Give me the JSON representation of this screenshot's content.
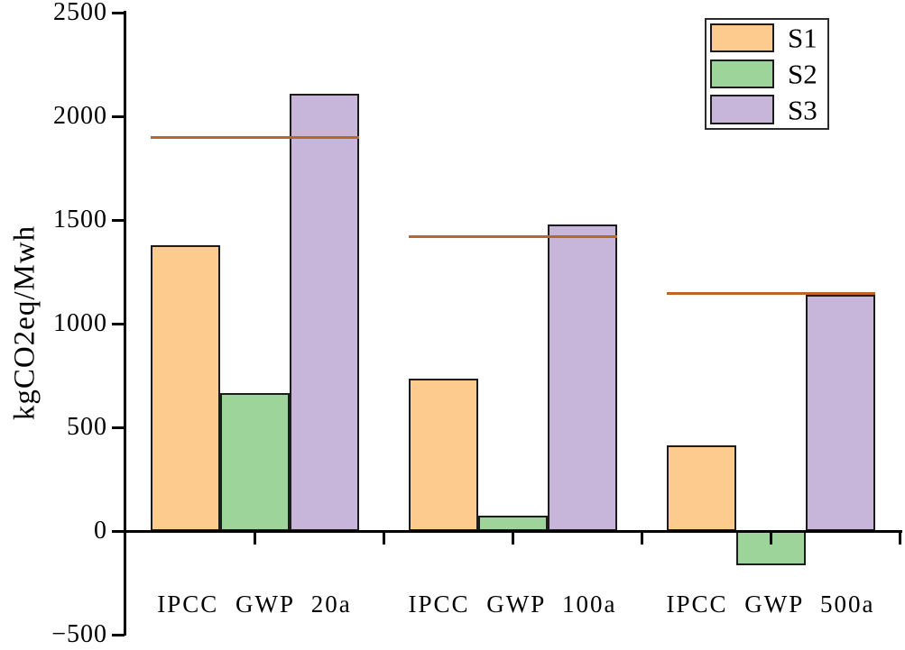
{
  "figure": {
    "background": "#ffffff",
    "axis_color": "#000000"
  },
  "y_axis": {
    "title": "kgCO2eq/Mwh",
    "ticks": [
      {
        "value": 2500,
        "label": "2500"
      },
      {
        "value": 2000,
        "label": "2000"
      },
      {
        "value": 1500,
        "label": "1500"
      },
      {
        "value": 1000,
        "label": "1000"
      },
      {
        "value": 500,
        "label": "500"
      },
      {
        "value": 0,
        "label": "0"
      },
      {
        "value": -500,
        "label": "−500"
      }
    ]
  },
  "legend": {
    "position": "top-right",
    "items": [
      {
        "label": "S1",
        "color": "#FDCB8E"
      },
      {
        "label": "S2",
        "color": "#9CD49A"
      },
      {
        "label": "S3",
        "color": "#C8B6DA"
      }
    ]
  },
  "chart_data": {
    "type": "bar",
    "title": "",
    "xlabel": "",
    "ylabel": "kgCO2eq/Mwh",
    "ylim": [
      -500,
      2500
    ],
    "grid": false,
    "categories": [
      "IPCC GWP 20a",
      "IPCC GWP 100a",
      "IPCC GWP 500a"
    ],
    "series": [
      {
        "name": "S1",
        "color": "#FDCB8E",
        "values": [
          1380,
          735,
          415
        ]
      },
      {
        "name": "S2",
        "color": "#9CD49A",
        "values": [
          665,
          75,
          -165
        ]
      },
      {
        "name": "S3",
        "color": "#C8B6DA",
        "values": [
          2110,
          1480,
          1140
        ],
        "pattern": "dots"
      }
    ],
    "reference_lines": {
      "color": "#BE6526",
      "description": "horizontal line spanning each category group",
      "values": [
        1900,
        1420,
        1150
      ]
    }
  }
}
